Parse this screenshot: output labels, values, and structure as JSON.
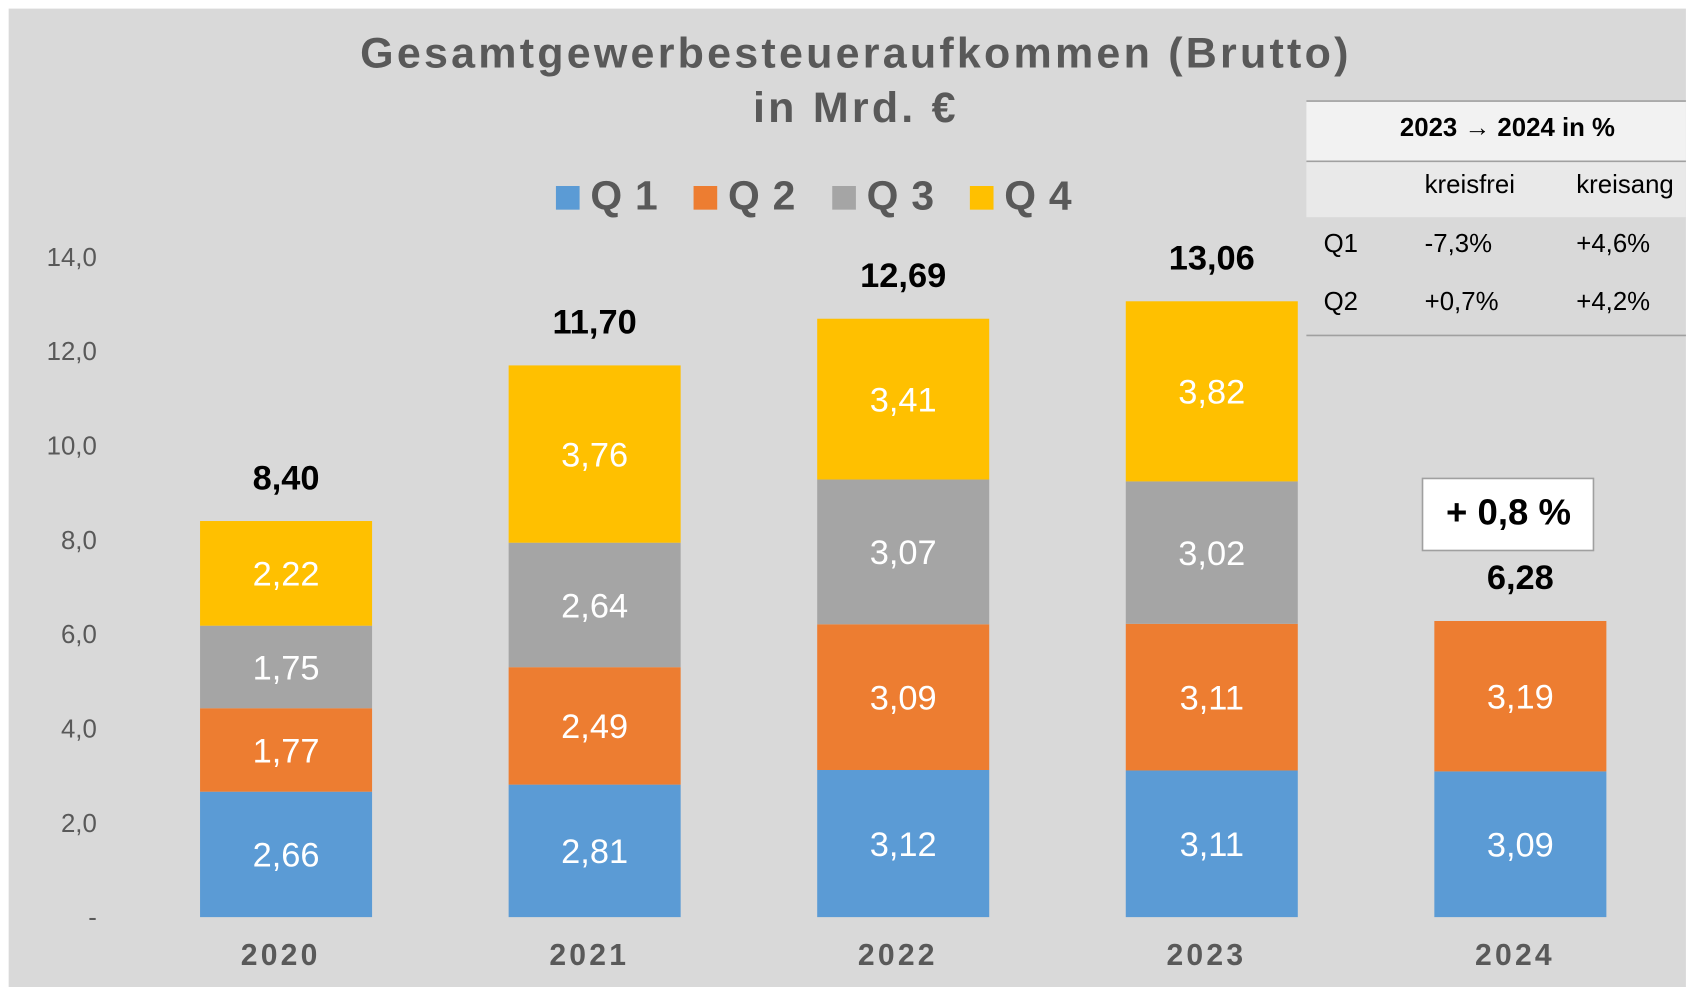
{
  "chart_data": {
    "type": "stacked_bar",
    "title": "Gesamtgewerbesteueraufkommen (Brutto)",
    "subtitle": "in Mrd. €",
    "categories": [
      "2020",
      "2021",
      "2022",
      "2023",
      "2024"
    ],
    "series": [
      {
        "name": "Q1",
        "color": "#5b9bd5",
        "values": [
          2.66,
          2.81,
          3.12,
          3.11,
          3.09
        ],
        "value_labels": [
          "2,66",
          "2,81",
          "3,12",
          "3,11",
          "3,09"
        ]
      },
      {
        "name": "Q2",
        "color": "#ed7d31",
        "values": [
          1.77,
          2.49,
          3.09,
          3.11,
          3.19
        ],
        "value_labels": [
          "1,77",
          "2,49",
          "3,09",
          "3,11",
          "3,19"
        ]
      },
      {
        "name": "Q3",
        "color": "#a5a5a5",
        "values": [
          1.75,
          2.64,
          3.07,
          3.02,
          null
        ],
        "value_labels": [
          "1,75",
          "2,64",
          "3,07",
          "3,02",
          null
        ]
      },
      {
        "name": "Q4",
        "color": "#ffc000",
        "values": [
          2.22,
          3.76,
          3.41,
          3.82,
          null
        ],
        "value_labels": [
          "2,22",
          "3,76",
          "3,41",
          "3,82",
          null
        ]
      }
    ],
    "totals": {
      "values": [
        8.4,
        11.7,
        12.69,
        13.06,
        6.28
      ],
      "value_labels": [
        "8,40",
        "11,70",
        "12,69",
        "13,06",
        "6,28"
      ]
    },
    "ylim": [
      0,
      14
    ],
    "yticks": [
      {
        "value": 0,
        "label": "-"
      },
      {
        "value": 2,
        "label": "2,0"
      },
      {
        "value": 4,
        "label": "4,0"
      },
      {
        "value": 6,
        "label": "6,0"
      },
      {
        "value": 8,
        "label": "8,0"
      },
      {
        "value": 10,
        "label": "10,0"
      },
      {
        "value": 12,
        "label": "12,0"
      },
      {
        "value": 14,
        "label": "14,0"
      }
    ],
    "grid": false,
    "legend": "top",
    "annotation": "+ 0,8 %",
    "table": {
      "title": "2023 → 2024 in %",
      "header": [
        "kreisfrei",
        "kreisang"
      ],
      "rows": [
        [
          "Q1",
          "-7,3%",
          "+4,6%"
        ],
        [
          "Q2",
          "+0,7%",
          "+4,2%"
        ]
      ]
    }
  }
}
